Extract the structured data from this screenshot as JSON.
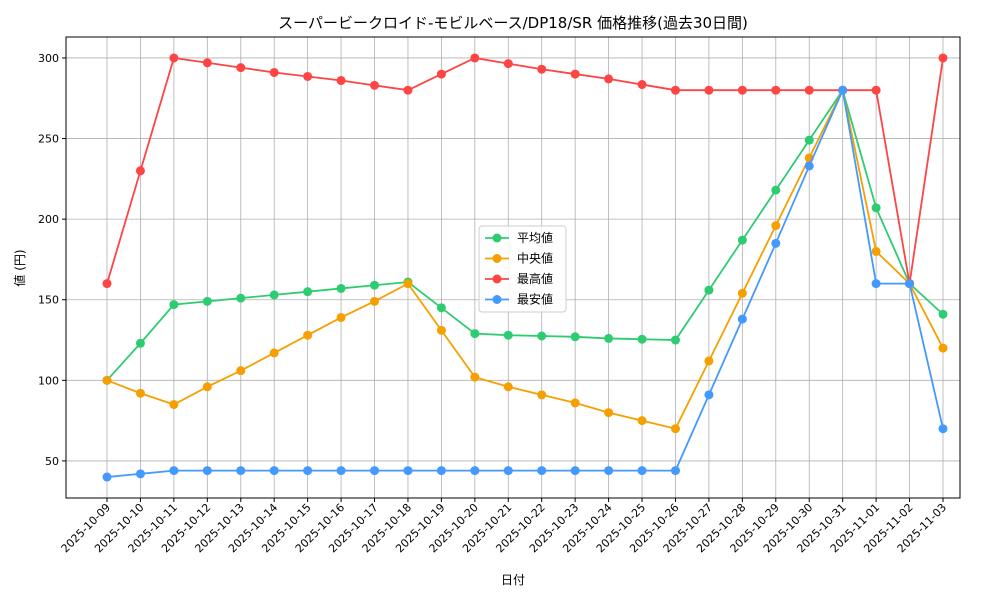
{
  "chart_data": {
    "type": "line",
    "title": "スーパービークロイド-モビルベース/DP18/SR 価格推移(過去30日間)",
    "xlabel": "日付",
    "ylabel": "値 (円)",
    "ylim": [
      27,
      313
    ],
    "yticks": [
      50,
      100,
      150,
      200,
      250,
      300
    ],
    "grid": true,
    "legend_position": "center",
    "x": [
      "2025-10-09",
      "2025-10-10",
      "2025-10-11",
      "2025-10-12",
      "2025-10-13",
      "2025-10-14",
      "2025-10-15",
      "2025-10-16",
      "2025-10-17",
      "2025-10-18",
      "2025-10-19",
      "2025-10-20",
      "2025-10-21",
      "2025-10-22",
      "2025-10-23",
      "2025-10-24",
      "2025-10-25",
      "2025-10-26",
      "2025-10-27",
      "2025-10-28",
      "2025-10-29",
      "2025-10-30",
      "2025-10-31",
      "2025-11-01",
      "2025-11-02",
      "2025-11-03"
    ],
    "series": [
      {
        "name": "平均値",
        "color": "#2ecc71",
        "values": [
          100,
          123,
          147,
          149,
          151,
          153,
          155,
          157,
          159,
          161,
          145,
          129,
          128,
          127.5,
          127,
          126,
          125.5,
          125,
          156,
          187,
          218,
          249,
          280,
          207,
          160,
          141
        ]
      },
      {
        "name": "中央値",
        "color": "#f5a000",
        "values": [
          100,
          92,
          85,
          96,
          106,
          117,
          128,
          139,
          149,
          160,
          131,
          102,
          96,
          91,
          86,
          80,
          75,
          70,
          112,
          154,
          196,
          238,
          280,
          180,
          160,
          120
        ]
      },
      {
        "name": "最高値",
        "color": "#ff4444",
        "values": [
          160,
          230,
          300,
          297,
          294,
          291,
          288.5,
          286,
          283,
          280,
          290,
          300,
          296.5,
          293,
          290,
          287,
          283.5,
          280,
          280,
          280,
          280,
          280,
          280,
          280,
          160,
          300
        ]
      },
      {
        "name": "最安値",
        "color": "#4499ff",
        "values": [
          40,
          42,
          44,
          44,
          44,
          44,
          44,
          44,
          44,
          44,
          44,
          44,
          44,
          44,
          44,
          44,
          44,
          44,
          91,
          138,
          185,
          233,
          280,
          160,
          160,
          70
        ]
      }
    ]
  }
}
